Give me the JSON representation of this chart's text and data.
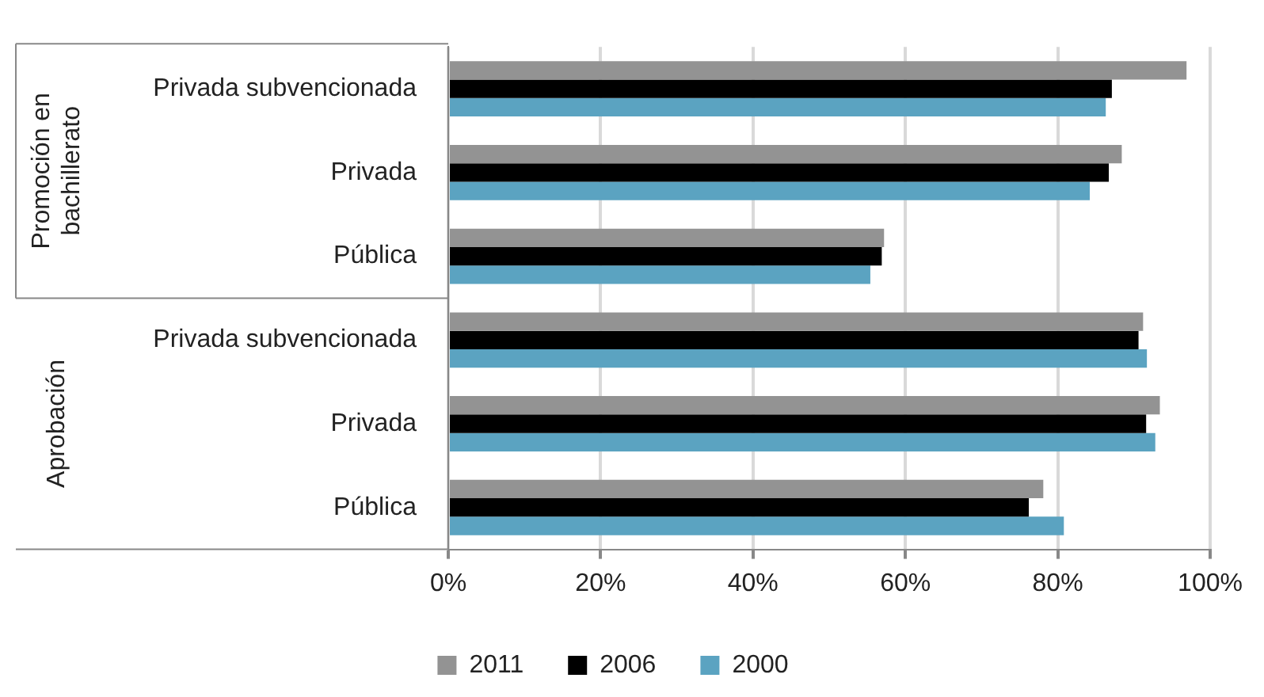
{
  "chart_data": {
    "type": "bar",
    "orientation": "horizontal",
    "categories": [
      "Privada subvencionada",
      "Privada",
      "Pública",
      "Privada subvencionada",
      "Privada",
      "Pública"
    ],
    "series": [
      {
        "name": "2011",
        "color": "#939393",
        "values": [
          96.9,
          88.4,
          57.2,
          91.2,
          93.4,
          78.1
        ]
      },
      {
        "name": "2006",
        "color": "#000000",
        "values": [
          87.1,
          86.7,
          56.9,
          90.6,
          91.6,
          76.2
        ]
      },
      {
        "name": "2000",
        "color": "#5ba3c1",
        "values": [
          86.3,
          84.2,
          55.4,
          91.7,
          92.8,
          80.8
        ]
      }
    ],
    "xlim": [
      0,
      100
    ],
    "xticks": [
      {
        "value": 0,
        "label": "0%"
      },
      {
        "value": 20,
        "label": "20%"
      },
      {
        "value": 40,
        "label": "40%"
      },
      {
        "value": 60,
        "label": "60%"
      },
      {
        "value": 80,
        "label": "80%"
      },
      {
        "value": 100,
        "label": "100%"
      }
    ],
    "annotations": [
      "Promoción en bachillerato",
      "Aprobación"
    ],
    "grid": "x",
    "legend": "bottom"
  }
}
